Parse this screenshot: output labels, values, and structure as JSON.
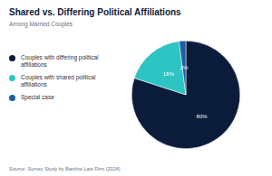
{
  "chart_data": {
    "type": "pie",
    "title": "Shared vs. Differing Political Affiliations",
    "subtitle": "Among Married Couples",
    "categories": [
      "Couples with differing political affiliations",
      "Couples with shared political affiliations",
      "Special case"
    ],
    "values": [
      80,
      18,
      2
    ],
    "value_labels": [
      "80%",
      "18%",
      "2%"
    ],
    "colors": [
      "#0b1c3b",
      "#2ec4c4",
      "#1d5fa6"
    ],
    "legend": "left",
    "data_labels": true,
    "source": "Source: Survey Study by Bardine Law Firm (2024)"
  }
}
